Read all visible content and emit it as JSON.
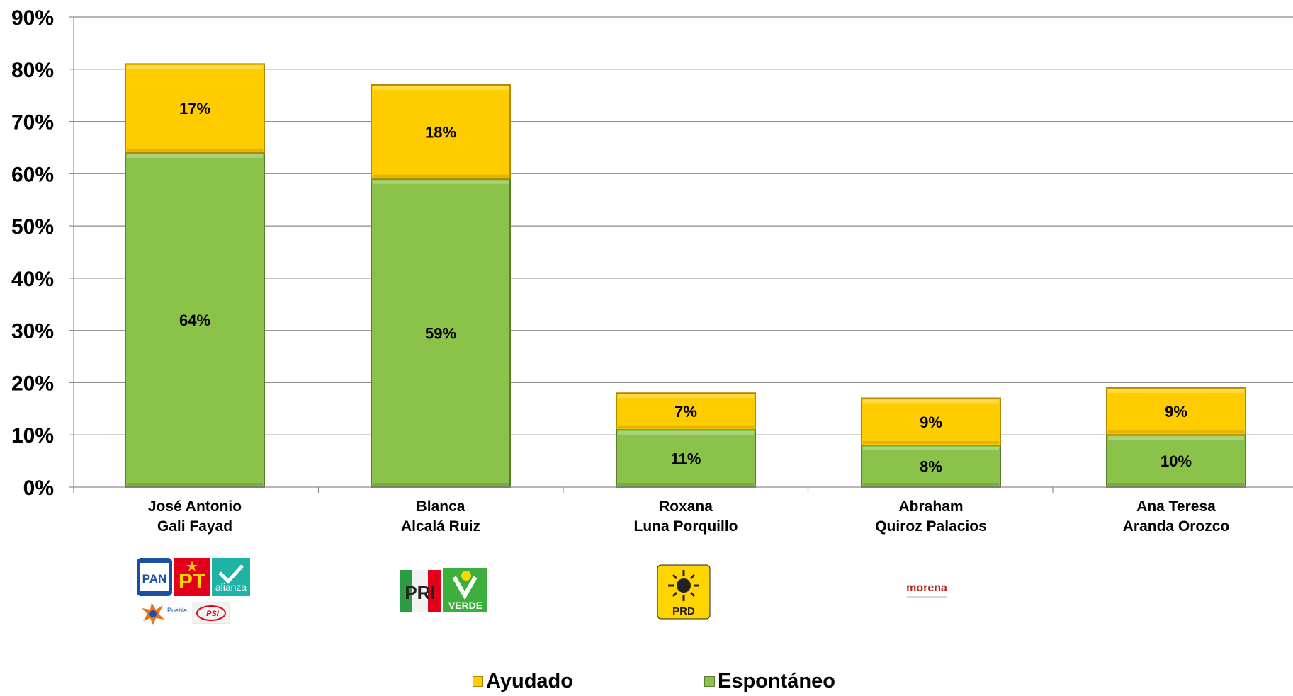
{
  "chart_data": {
    "type": "bar",
    "stacked": true,
    "categories": [
      "José Antonio\nGali Fayad",
      "Blanca\nAlcalá Ruiz",
      "Roxana\nLuna Porquillo",
      "Abraham\nQuiroz Palacios",
      "Ana Teresa\nAranda Orozco"
    ],
    "series": [
      {
        "name": "Espontáneo",
        "color": "#8bc34a",
        "values": [
          64,
          59,
          11,
          8,
          10
        ],
        "labels": [
          "64%",
          "59%",
          "11%",
          "8%",
          "10%"
        ]
      },
      {
        "name": "Ayudado",
        "color": "#ffcc00",
        "values": [
          17,
          18,
          7,
          9,
          9
        ],
        "labels": [
          "17%",
          "18%",
          "7%",
          "9%",
          "9%"
        ]
      }
    ],
    "y_ticks": [
      "0%",
      "10%",
      "20%",
      "30%",
      "40%",
      "50%",
      "60%",
      "70%",
      "80%",
      "90%"
    ],
    "ylim": [
      0,
      90
    ],
    "grid": true,
    "legend_position": "bottom",
    "legend": [
      "Ayudado",
      "Espontáneo"
    ]
  },
  "logos": {
    "group1": [
      "PAN",
      "PT",
      "alianza",
      "Puebla",
      "PSI"
    ],
    "group2": [
      "PRI",
      "VERDE"
    ],
    "group3": [
      "PRD"
    ],
    "group4": [
      "morena"
    ]
  }
}
